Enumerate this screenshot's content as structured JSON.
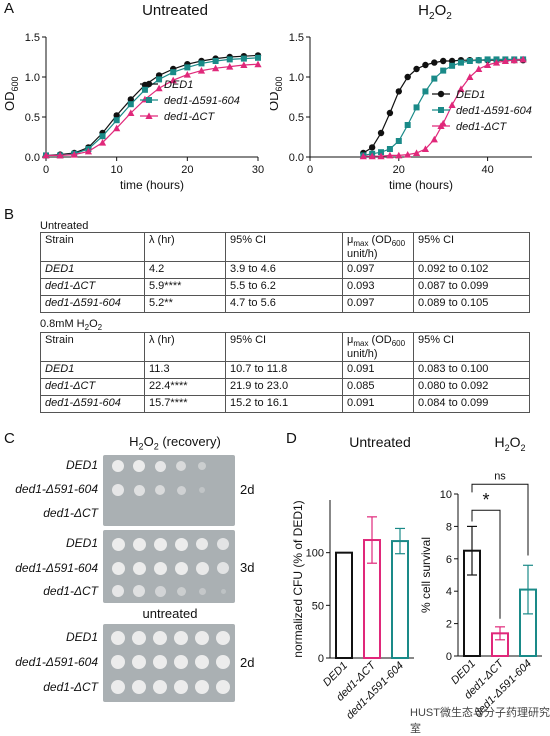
{
  "panels": {
    "A": "A",
    "B": "B",
    "C": "C",
    "D": "D"
  },
  "colors": {
    "ded1": "#111111",
    "d591": "#1a8a88",
    "dct": "#e0287a"
  },
  "legend": [
    "DED1",
    "ded1-Δ591-604",
    "ded1-ΔCT"
  ],
  "panelA": {
    "untreated_title": "Untreated",
    "h2o2_title_base": "H",
    "h2o2_title_sub": "2",
    "h2o2_title_base2": "O",
    "h2o2_title_sub2": "2",
    "ylabel": "OD",
    "ylabel_sub": "600",
    "xlabel": "time (hours)"
  },
  "chart_data": [
    {
      "type": "line",
      "title": "Untreated",
      "xlabel": "time (hours)",
      "ylabel": "OD600",
      "xlim": [
        0,
        30
      ],
      "ylim": [
        0,
        1.5
      ],
      "xticks": [
        "0",
        "10",
        "20",
        "30"
      ],
      "yticks": [
        "0.0",
        "0.5",
        "1.0",
        "1.5"
      ],
      "series": [
        {
          "name": "DED1",
          "x": [
            0,
            2,
            4,
            6,
            8,
            10,
            12,
            14,
            16,
            18,
            20,
            22,
            24,
            26,
            28,
            30
          ],
          "y": [
            0.02,
            0.03,
            0.05,
            0.12,
            0.3,
            0.52,
            0.72,
            0.9,
            1.02,
            1.1,
            1.16,
            1.2,
            1.23,
            1.25,
            1.26,
            1.27
          ]
        },
        {
          "name": "ded1-Δ591-604",
          "x": [
            0,
            2,
            4,
            6,
            8,
            10,
            12,
            14,
            16,
            18,
            20,
            22,
            24,
            26,
            28,
            30
          ],
          "y": [
            0.02,
            0.02,
            0.04,
            0.1,
            0.26,
            0.46,
            0.66,
            0.84,
            0.97,
            1.06,
            1.12,
            1.17,
            1.2,
            1.22,
            1.23,
            1.24
          ]
        },
        {
          "name": "ded1-ΔCT",
          "x": [
            0,
            2,
            4,
            6,
            8,
            10,
            12,
            14,
            16,
            18,
            20,
            22,
            24,
            26,
            28,
            30
          ],
          "y": [
            0.02,
            0.02,
            0.03,
            0.07,
            0.18,
            0.36,
            0.55,
            0.72,
            0.86,
            0.96,
            1.03,
            1.08,
            1.11,
            1.13,
            1.15,
            1.16
          ]
        }
      ]
    },
    {
      "type": "line",
      "title": "H2O2",
      "xlabel": "time (hours)",
      "ylabel": "OD600",
      "xlim": [
        0,
        50
      ],
      "ylim": [
        0,
        1.5
      ],
      "xticks": [
        "0",
        "20",
        "40"
      ],
      "yticks": [
        "0.0",
        "0.5",
        "1.0",
        "1.5"
      ],
      "series": [
        {
          "name": "DED1",
          "x": [
            12,
            14,
            16,
            18,
            20,
            22,
            24,
            26,
            28,
            30,
            32,
            34,
            36,
            38,
            40,
            42,
            44,
            46,
            48
          ],
          "y": [
            0.05,
            0.12,
            0.3,
            0.55,
            0.82,
            1.0,
            1.1,
            1.15,
            1.18,
            1.2,
            1.2,
            1.21,
            1.21,
            1.21,
            1.21,
            1.21,
            1.21,
            1.21,
            1.21
          ]
        },
        {
          "name": "ded1-Δ591-604",
          "x": [
            12,
            14,
            16,
            18,
            20,
            22,
            24,
            26,
            28,
            30,
            32,
            34,
            36,
            38,
            40,
            42,
            44,
            46,
            48
          ],
          "y": [
            0.02,
            0.04,
            0.06,
            0.1,
            0.2,
            0.4,
            0.62,
            0.82,
            0.98,
            1.08,
            1.14,
            1.18,
            1.2,
            1.21,
            1.22,
            1.22,
            1.22,
            1.22,
            1.22
          ]
        },
        {
          "name": "ded1-ΔCT",
          "x": [
            12,
            14,
            16,
            18,
            20,
            22,
            24,
            26,
            28,
            30,
            32,
            34,
            36,
            38,
            40,
            42,
            44,
            46,
            48
          ],
          "y": [
            0.01,
            0.01,
            0.01,
            0.02,
            0.02,
            0.03,
            0.05,
            0.1,
            0.22,
            0.42,
            0.65,
            0.85,
            1.0,
            1.1,
            1.15,
            1.18,
            1.2,
            1.21,
            1.22
          ]
        }
      ]
    },
    {
      "type": "bar",
      "title": "Untreated",
      "ylabel": "normalized CFU (% of DED1)",
      "ylim": [
        0,
        150
      ],
      "yticks": [
        "0",
        "50",
        "100"
      ],
      "categories": [
        "DED1",
        "ded1-ΔCT",
        "ded1-Δ591-604"
      ],
      "values": [
        100,
        112,
        111
      ],
      "errors": [
        0,
        22,
        12
      ]
    },
    {
      "type": "bar",
      "title": "H2O2",
      "ylabel": "% cell survival",
      "ylim": [
        0,
        10
      ],
      "yticks": [
        "0",
        "2",
        "4",
        "6",
        "8",
        "10"
      ],
      "categories": [
        "DED1",
        "ded1-ΔCT",
        "ded1-Δ591-604"
      ],
      "values": [
        6.5,
        1.4,
        4.1
      ],
      "errors": [
        1.5,
        0.4,
        1.5
      ],
      "annotations": [
        "*",
        "ns"
      ]
    }
  ],
  "panelB": {
    "table1_title": "Untreated",
    "table2_title_pre": "0.8mM H",
    "table2_title_sub": "2",
    "table2_title_mid": "O",
    "table2_title_sub2": "2",
    "headers": [
      "Strain",
      "λ (hr)",
      "95% CI",
      "μ",
      "max",
      " (OD",
      "600",
      " unit/h)",
      "95% CI"
    ],
    "table1": [
      [
        "DED1",
        "4.2",
        "3.9 to 4.6",
        "0.097",
        "0.092 to 0.102"
      ],
      [
        "ded1-ΔCT",
        "5.9****",
        "5.5 to 6.2",
        "0.093",
        "0.087 to 0.099"
      ],
      [
        "ded1-Δ591-604",
        "5.2**",
        "4.7 to 5.6",
        "0.097",
        "0.089 to 0.105"
      ]
    ],
    "table2": [
      [
        "DED1",
        "11.3",
        "10.7 to 11.8",
        "0.091",
        "0.083 to 0.100"
      ],
      [
        "ded1-ΔCT",
        "22.4****",
        "21.9 to 23.0",
        "0.085",
        "0.080 to 0.092"
      ],
      [
        "ded1-Δ591-604",
        "15.7****",
        "15.2 to 16.1",
        "0.091",
        "0.084 to 0.099"
      ]
    ]
  },
  "panelC": {
    "title_pre": "H",
    "title_sub": "2",
    "title_mid": "O",
    "title_sub2": "2",
    "title_post": " (recovery)",
    "untreated": "untreated",
    "strains": [
      "DED1",
      "ded1-Δ591-604",
      "ded1-ΔCT"
    ],
    "days": [
      "2d",
      "3d",
      "2d"
    ]
  },
  "panelD": {
    "untreated_title": "Untreated",
    "h2o2_title_pre": "H",
    "h2o2_sub": "2",
    "h2o2_mid": "O",
    "h2o2_sub2": "2",
    "sig": "*",
    "ns": "ns"
  },
  "watermark": "HUST微生态与分子药理研究室"
}
